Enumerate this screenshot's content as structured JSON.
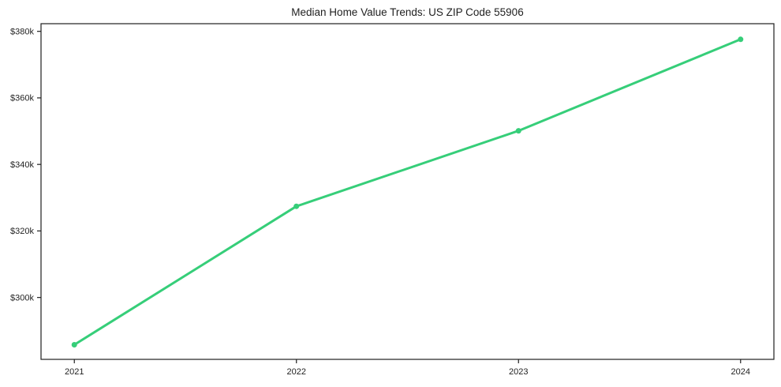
{
  "window": {
    "background": "#ffffff"
  },
  "chart_data": {
    "type": "line",
    "title": "Median Home Value Trends: US ZIP Code 55906",
    "x": [
      2021,
      2022,
      2023,
      2024
    ],
    "x_tick_labels": [
      "2021",
      "2022",
      "2023",
      "2024"
    ],
    "values": [
      285800,
      327400,
      350100,
      377600
    ],
    "y_ticks": [
      {
        "value": 300000,
        "label": "$300k"
      },
      {
        "value": 320000,
        "label": "$320k"
      },
      {
        "value": 340000,
        "label": "$340k"
      },
      {
        "value": 360000,
        "label": "$360k"
      },
      {
        "value": 380000,
        "label": "$380k"
      }
    ],
    "xlim": [
      2020.85,
      2024.15
    ],
    "ylim": [
      281400,
      382300
    ],
    "grid": false,
    "legend": "none",
    "line_color": "#36ce79",
    "marker": "circle",
    "axis_color": "#1f1f1f",
    "text_color": "#1f1f1f",
    "background": "#ffffff"
  }
}
